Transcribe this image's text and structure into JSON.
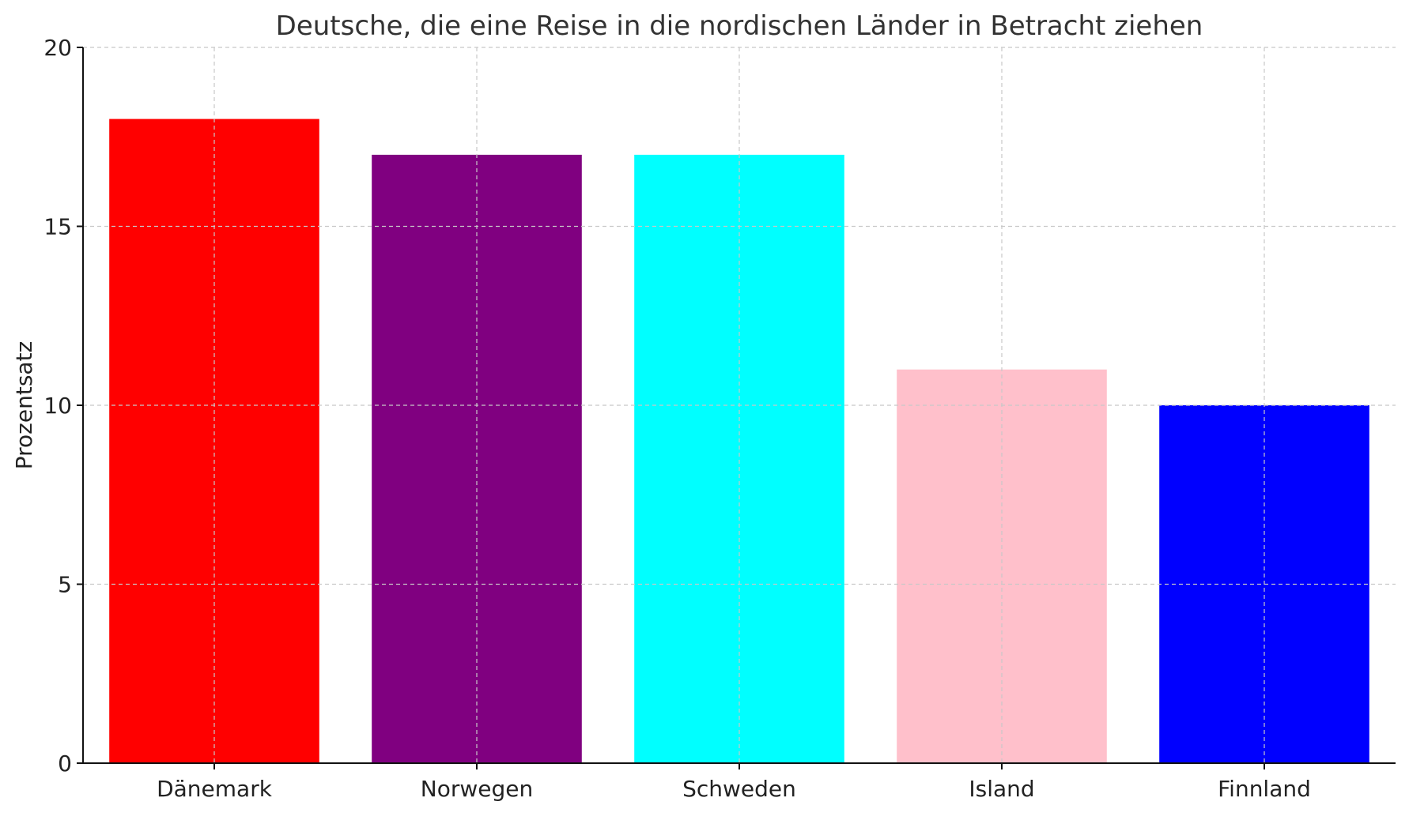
{
  "chart_data": {
    "type": "bar",
    "title": "Deutsche, die eine Reise in die nordischen Länder in Betracht ziehen",
    "xlabel": "",
    "ylabel": "Prozentsatz",
    "categories": [
      "Dänemark",
      "Norwegen",
      "Schweden",
      "Island",
      "Finnland"
    ],
    "values": [
      18,
      17,
      17,
      11,
      10
    ],
    "colors": [
      "#ff0000",
      "#800080",
      "#00ffff",
      "#ffc0cb",
      "#0000ff"
    ],
    "ylim": [
      0,
      20
    ],
    "yticks": [
      0,
      5,
      10,
      15,
      20
    ],
    "grid": true
  }
}
